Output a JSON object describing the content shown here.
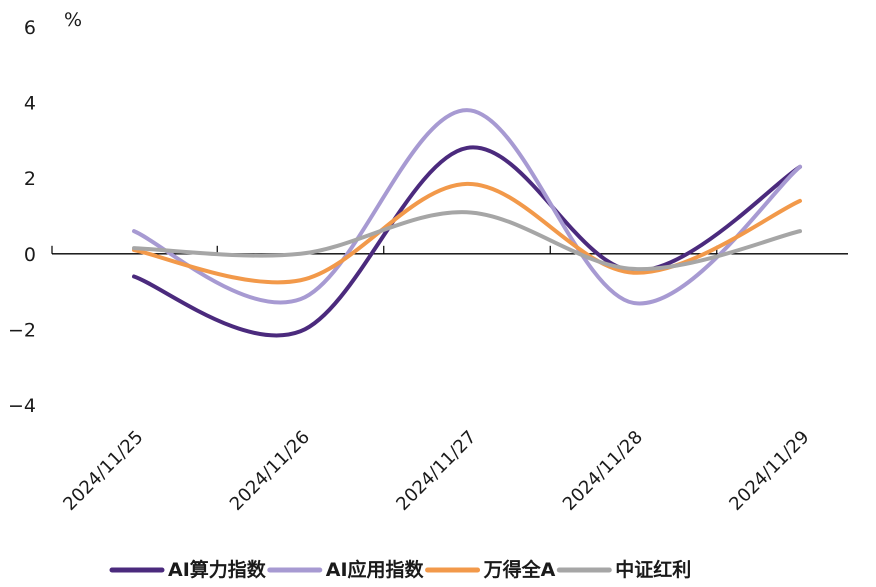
{
  "chart_data": {
    "type": "line",
    "title": "",
    "xlabel": "",
    "ylabel": "",
    "unit": "%",
    "categories": [
      "2024/11/25",
      "2024/11/26",
      "2024/11/27",
      "2024/11/28",
      "2024/11/29"
    ],
    "ylim": [
      -4,
      6
    ],
    "yticks": [
      6,
      4,
      2,
      0,
      -2,
      -4
    ],
    "ytick_labels": [
      "6",
      "4",
      "2",
      "0",
      "−2",
      "−4"
    ],
    "grid": false,
    "legend_position": "bottom",
    "series": [
      {
        "name": "AI算力指数",
        "color": "#4b2a7d",
        "values": [
          -0.6,
          -2.05,
          2.8,
          -0.45,
          2.3
        ]
      },
      {
        "name": "AI应用指数",
        "color": "#a79ad2",
        "values": [
          0.6,
          -1.2,
          3.8,
          -1.3,
          2.3
        ]
      },
      {
        "name": "万得全A",
        "color": "#f2994a",
        "values": [
          0.1,
          -0.7,
          1.85,
          -0.5,
          1.4
        ]
      },
      {
        "name": "中证红利",
        "color": "#a6a6a6",
        "values": [
          0.15,
          0.0,
          1.1,
          -0.4,
          0.6
        ]
      }
    ]
  }
}
